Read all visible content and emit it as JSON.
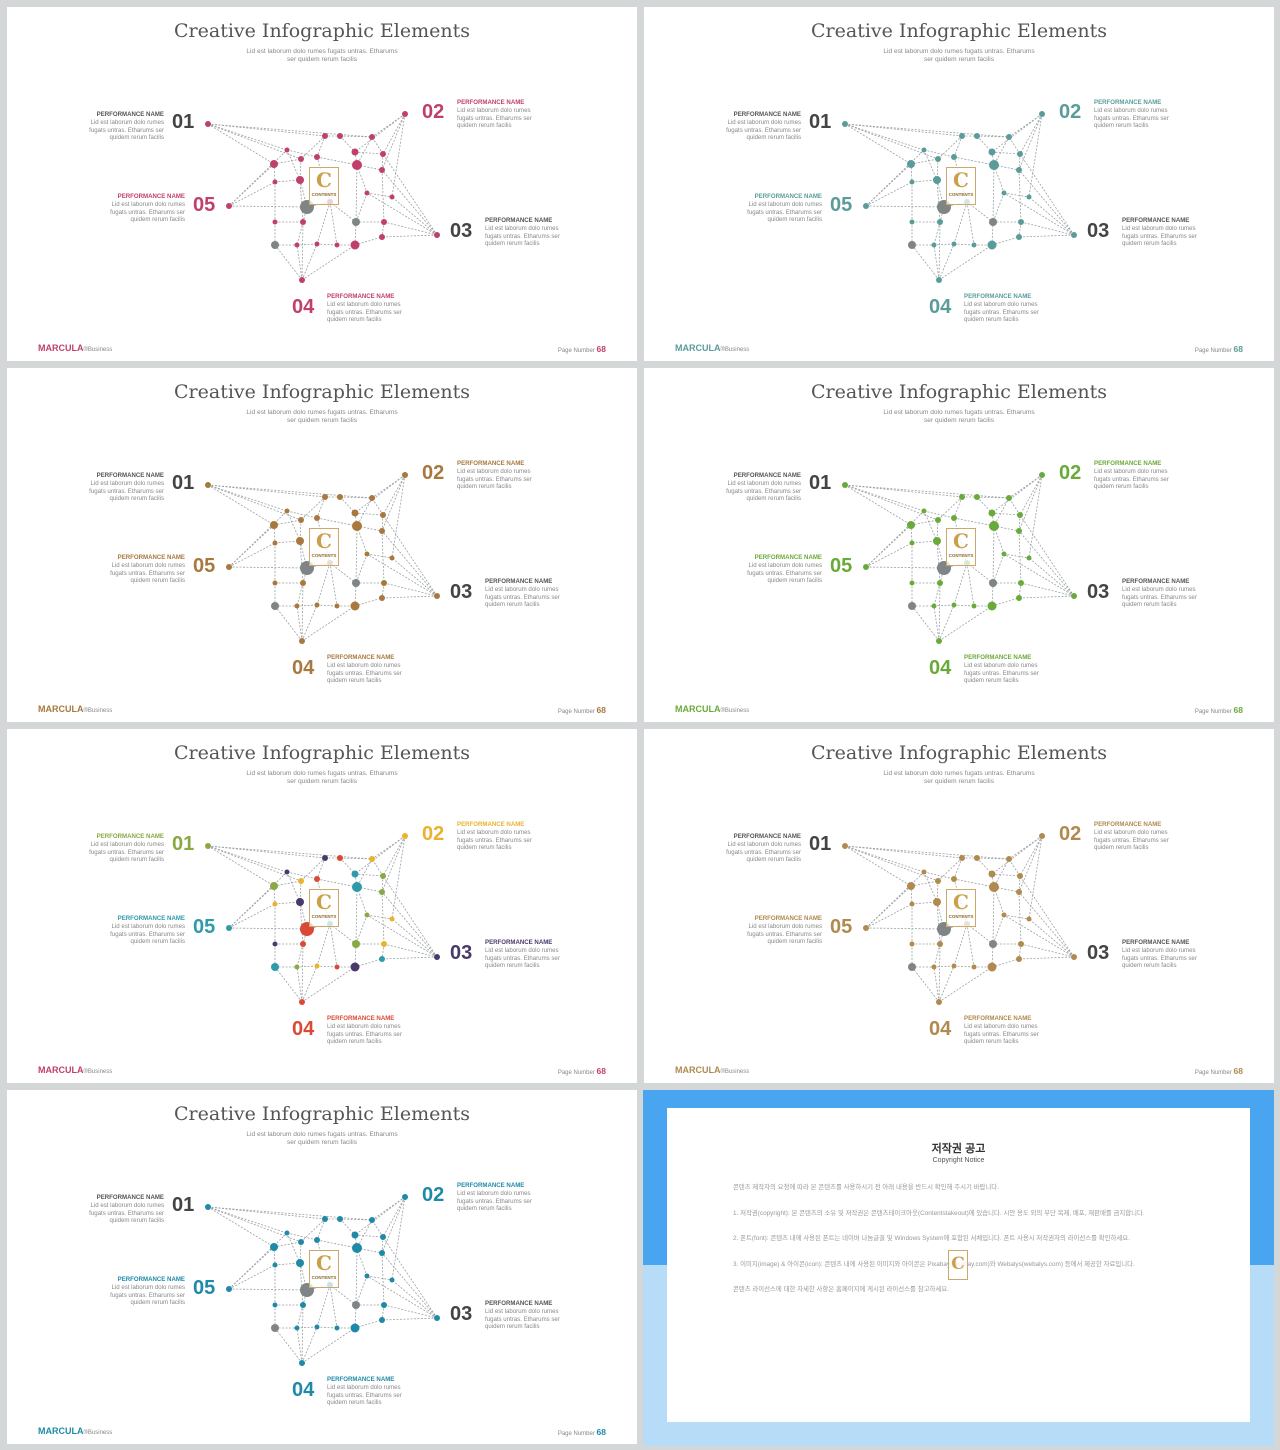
{
  "slide": {
    "title": "Creative Infographic Elements",
    "subtitle_line1": "Lid est laborum dolo rumes fugats untras. Etharums",
    "subtitle_line2": "ser quidem rerum facilis",
    "items": [
      {
        "num": "01",
        "name": "PERFORMANCE NAME",
        "d1": "Lid est laborum dolo rumes",
        "d2": "fugats untras. Etharums ser",
        "d3": "quidem rerum facilis"
      },
      {
        "num": "02",
        "name": "PERFORMANCE NAME",
        "d1": "Lid est laborum dolo rumes",
        "d2": "fugats untras. Etharums ser",
        "d3": "quidem rerum facilis"
      },
      {
        "num": "03",
        "name": "PERFORMANCE NAME",
        "d1": "Lid est laborum dolo rumes",
        "d2": "fugats untras. Etharums ser",
        "d3": "quidem rerum facilis"
      },
      {
        "num": "04",
        "name": "PERFORMANCE NAME",
        "d1": "Lid est laborum dolo rumes",
        "d2": "fugats untras. Etharums ser",
        "d3": "quidem rerum facilis"
      },
      {
        "num": "05",
        "name": "PERFORMANCE NAME",
        "d1": "Lid est laborum dolo rumes",
        "d2": "fugats untras. Etharums ser",
        "d3": "quidem rerum facilis"
      }
    ],
    "brand": "MARCULA",
    "brand_suffix": "®Business",
    "page_label": "Page Number",
    "page_number": "68",
    "logo_glyph": "C",
    "logo_text": "CONTENTS"
  },
  "variants": [
    {
      "accent": "#c0406a",
      "colored_numbers": [
        "02",
        "04",
        "05"
      ]
    },
    {
      "accent": "#5a9c9a",
      "colored_numbers": [
        "02",
        "04",
        "05"
      ]
    },
    {
      "accent": "#a8783e",
      "colored_numbers": [
        "02",
        "04",
        "05"
      ]
    },
    {
      "accent": "#6aaa3a",
      "colored_numbers": [
        "02",
        "04",
        "05"
      ]
    },
    {
      "accent": "multicolor",
      "palette": [
        "#8aa843",
        "#eab22e",
        "#4a3a6a",
        "#d94a36",
        "#2e9aaa"
      ]
    },
    {
      "accent": "#b08a4e",
      "colored_numbers": [
        "02",
        "04",
        "05"
      ]
    },
    {
      "accent": "#1f8aa8",
      "colored_numbers": [
        "02",
        "04",
        "05"
      ]
    }
  ],
  "notice": {
    "title": "저작권 공고",
    "subtitle": "Copyright Notice",
    "intro": "콘텐츠 제작자의 요청에 따라 본 콘텐츠를 사용하시기 전 아래 내용을 반드시 확인해 주시기 바랍니다.",
    "p1": "1. 저작권(copyright): 본 콘텐츠의 소유 및 저작권은 콘텐츠테이크아웃(Contentstakeout)에 있습니다. 시안 용도 외의 무단 복제, 배포, 재판매를 금지합니다.",
    "p2": "2. 폰트(font): 콘텐츠 내에 사용된 폰트는 네이버 나눔글꼴 및 Windows System에 포함된 서체입니다. 폰트 사용시 저작권자의 라이선스를 확인하세요.",
    "p3": "3. 이미지(image) & 아이콘(icon): 콘텐츠 내에 사용된 이미지와 아이콘은 Pixabay(pixabay.com)와 Webalys(webalys.com) 등에서 제공한 자료입니다.",
    "outro": "콘텐츠 라이선스에 대한 자세한 사항은 홈페이지에 게시된 라이선스를 참고하세요.",
    "logo_glyph": "C"
  }
}
